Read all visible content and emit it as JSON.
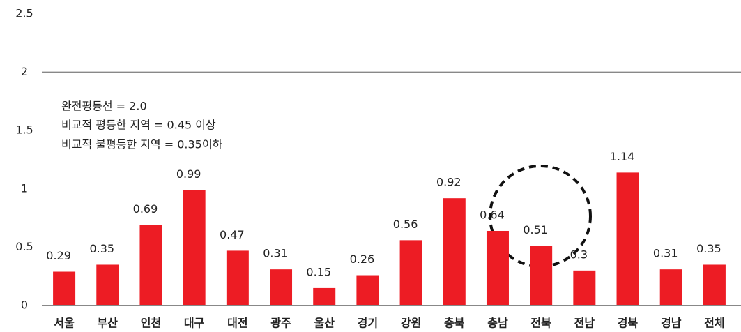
{
  "chart_data": {
    "type": "bar",
    "categories": [
      "서울",
      "부산",
      "인천",
      "대구",
      "대전",
      "광주",
      "울산",
      "경기",
      "강원",
      "충북",
      "충남",
      "전북",
      "전남",
      "경북",
      "경남",
      "전체"
    ],
    "values": [
      0.29,
      0.35,
      0.69,
      0.99,
      0.47,
      0.31,
      0.15,
      0.26,
      0.56,
      0.92,
      0.64,
      0.51,
      0.3,
      1.14,
      0.31,
      0.35
    ],
    "color": "#ed1c24",
    "ylim": [
      0,
      2.5
    ],
    "yticks": [
      0,
      0.5,
      1,
      1.5,
      2,
      2.5
    ],
    "reference_line": 2,
    "annotations": [
      "완전평등선 = 2.0",
      "비교적 평등한 지역 = 0.45 이상",
      "비교적 불평등한 지역 = 0.35이하"
    ]
  }
}
